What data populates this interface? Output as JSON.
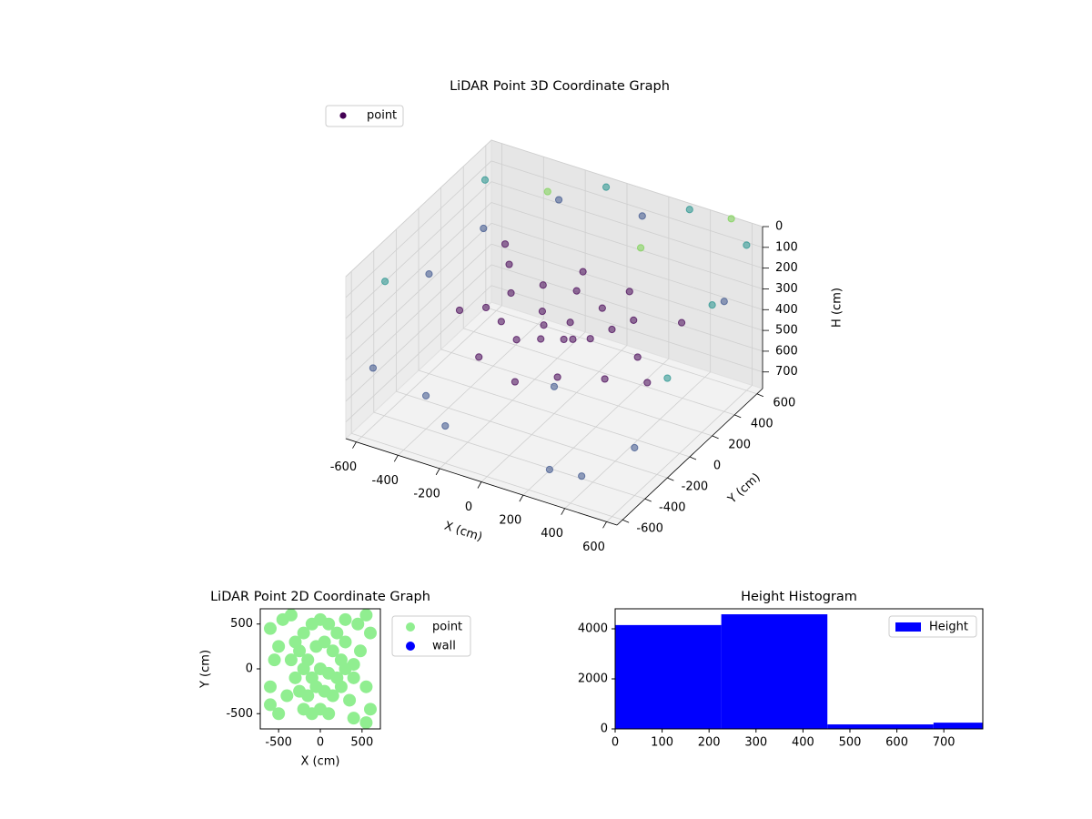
{
  "chart_data": [
    {
      "type": "scatter3d",
      "title": "LiDAR Point 3D Coordinate Graph",
      "xlabel": "X (cm)",
      "ylabel": "Y (cm)",
      "zlabel": "H (cm)",
      "xlim": [
        -650,
        650
      ],
      "ylim": [
        -650,
        650
      ],
      "zlim": [
        780,
        0
      ],
      "xticks": [
        -600,
        -400,
        -200,
        0,
        200,
        400,
        600
      ],
      "yticks": [
        -600,
        -400,
        -200,
        0,
        200,
        400,
        600
      ],
      "zticks": [
        0,
        100,
        200,
        300,
        400,
        500,
        600,
        700
      ],
      "grid": true,
      "legend": "upper left",
      "series": [
        {
          "name": "point",
          "color": "#440154",
          "x": [
            -200,
            -100,
            0,
            100,
            200,
            250,
            150,
            0,
            -150,
            -250,
            -300,
            -50,
            50,
            -100,
            100,
            300,
            350,
            -350,
            200,
            -200,
            0,
            400,
            -400,
            150,
            -50,
            450,
            500,
            -450,
            -600,
            -500,
            -300,
            100,
            600,
            600,
            -200,
            300,
            -600,
            0,
            400,
            -400,
            -650,
            -600,
            -100,
            300,
            600,
            650,
            650,
            500,
            -300,
            200
          ],
          "y": [
            -100,
            -150,
            -120,
            -100,
            -50,
            50,
            150,
            200,
            180,
            80,
            -50,
            0,
            50,
            80,
            -20,
            150,
            -200,
            250,
            300,
            -300,
            -350,
            0,
            -100,
            -250,
            350,
            300,
            -100,
            400,
            -500,
            300,
            600,
            600,
            400,
            -400,
            -600,
            -600,
            0,
            0,
            -500,
            -400,
            -300,
            500,
            650,
            650,
            600,
            200,
            -200,
            650,
            500,
            400
          ],
          "z": [
            350,
            380,
            360,
            340,
            330,
            320,
            300,
            290,
            300,
            320,
            340,
            370,
            350,
            360,
            380,
            310,
            400,
            300,
            280,
            420,
            450,
            380,
            360,
            430,
            290,
            350,
            420,
            310,
            500,
            200,
            150,
            100,
            250,
            550,
            600,
            650,
            300,
            650,
            700,
            620,
            200,
            100,
            50,
            30,
            80,
            150,
            300,
            10,
            60,
            120
          ],
          "colors": [
            "#440154",
            "#440154",
            "#440154",
            "#440154",
            "#440154",
            "#440154",
            "#440154",
            "#440154",
            "#440154",
            "#440154",
            "#440154",
            "#440154",
            "#440154",
            "#440154",
            "#440154",
            "#440154",
            "#440154",
            "#440154",
            "#440154",
            "#440154",
            "#440154",
            "#440154",
            "#440154",
            "#440154",
            "#440154",
            "#440154",
            "#440154",
            "#440154",
            "#3b528b",
            "#3b528b",
            "#3b528b",
            "#3b528b",
            "#3b528b",
            "#3b528b",
            "#3b528b",
            "#3b528b",
            "#3b528b",
            "#3b528b",
            "#3b528b",
            "#3b528b",
            "#21918c",
            "#21918c",
            "#21918c",
            "#21918c",
            "#21918c",
            "#21918c",
            "#21918c",
            "#7ad151",
            "#7ad151",
            "#7ad151"
          ]
        }
      ]
    },
    {
      "type": "scatter",
      "title": "LiDAR Point 2D Coordinate Graph",
      "xlabel": "X (cm)",
      "ylabel": "Y (cm)",
      "xlim": [
        -720,
        720
      ],
      "ylim": [
        -670,
        670
      ],
      "xticks": [
        -500,
        0,
        500
      ],
      "yticks": [
        -500,
        0,
        500
      ],
      "legend": "outside right",
      "series": [
        {
          "name": "point",
          "color": "#90ee90",
          "x": [
            -300,
            -200,
            -100,
            0,
            100,
            200,
            -350,
            -250,
            -150,
            -50,
            50,
            150,
            250,
            -300,
            -200,
            -100,
            0,
            100,
            200,
            300,
            400,
            -250,
            -150,
            -50,
            50,
            150,
            250,
            -200,
            -100,
            0,
            100,
            -400,
            -500,
            -600,
            -600,
            -550,
            -500,
            -450,
            300,
            450,
            550,
            600,
            550,
            600,
            550,
            400,
            350,
            -600,
            -350,
            300,
            400,
            480
          ],
          "y": [
            300,
            400,
            500,
            550,
            500,
            400,
            100,
            200,
            100,
            250,
            300,
            200,
            100,
            -100,
            0,
            -100,
            0,
            -50,
            -100,
            0,
            50,
            -250,
            -300,
            -200,
            -250,
            -300,
            -200,
            -450,
            -500,
            -450,
            -500,
            -300,
            -500,
            -400,
            450,
            100,
            250,
            550,
            550,
            500,
            600,
            400,
            -200,
            -450,
            -600,
            -550,
            -350,
            -200,
            600,
            300,
            -100,
            200
          ]
        },
        {
          "name": "wall",
          "color": "#0000ff",
          "x": [],
          "y": []
        }
      ]
    },
    {
      "type": "histogram",
      "title": "Height Histogram",
      "name": "Height",
      "color": "#0000ff",
      "bins": [
        0,
        226,
        452,
        678,
        783
      ],
      "values": [
        4150,
        4580,
        180,
        250
      ],
      "xlim": [
        0,
        783
      ],
      "ylim": [
        0,
        4800
      ],
      "xticks": [
        0,
        100,
        200,
        300,
        400,
        500,
        600,
        700
      ],
      "yticks": [
        0,
        2000,
        4000
      ],
      "legend": "upper right"
    }
  ]
}
